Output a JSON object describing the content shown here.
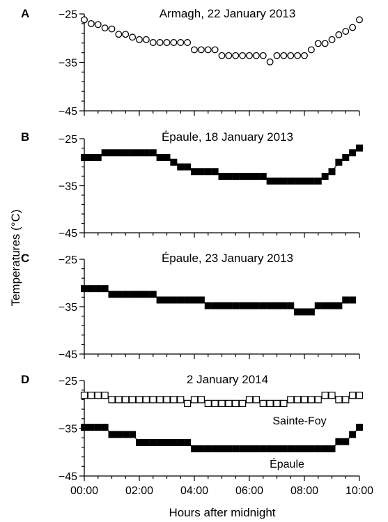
{
  "figure": {
    "ylabel": "Temperatures (°C)",
    "xlabel": "Hours after midnight"
  },
  "chart_data": [
    {
      "type": "scatter",
      "panel": "A",
      "title": "Armagh, 22 January 2013",
      "ylim": [
        -45,
        -25
      ],
      "yticks": [
        -25,
        -35,
        -45
      ],
      "xlim": [
        0,
        10
      ],
      "xticks": [
        "00:00",
        "02:00",
        "04:00",
        "06:00",
        "08:00",
        "10:00"
      ],
      "marker": "open-circle",
      "series": [
        {
          "x": [
            0.0,
            0.25,
            0.5,
            0.75,
            1.0,
            1.25,
            1.5,
            1.75,
            2.0,
            2.25,
            2.5,
            2.75,
            3.0,
            3.25,
            3.5,
            3.75,
            4.0,
            4.25,
            4.5,
            4.75,
            5.0,
            5.25,
            5.5,
            5.75,
            6.0,
            6.25,
            6.5,
            6.75,
            7.0,
            7.25,
            7.5,
            7.75,
            8.0,
            8.25,
            8.5,
            8.75,
            9.0,
            9.25,
            9.5,
            9.75,
            10.0
          ],
          "y": [
            -26.2,
            -27.0,
            -27.2,
            -27.9,
            -28.1,
            -29.2,
            -29.2,
            -29.8,
            -30.3,
            -30.3,
            -30.9,
            -30.9,
            -30.9,
            -30.9,
            -30.9,
            -30.9,
            -32.4,
            -32.4,
            -32.4,
            -32.4,
            -33.6,
            -33.6,
            -33.6,
            -33.6,
            -33.6,
            -33.6,
            -33.6,
            -34.9,
            -33.6,
            -33.6,
            -33.6,
            -33.6,
            -33.6,
            -32.4,
            -31.1,
            -31.1,
            -30.3,
            -29.3,
            -28.6,
            -27.8,
            -26.2
          ]
        }
      ]
    },
    {
      "type": "line",
      "panel": "B",
      "title": "Épaule, 18 January 2013",
      "ylim": [
        -45,
        -25
      ],
      "yticks": [
        -25,
        -35,
        -45
      ],
      "xlim": [
        0,
        10
      ],
      "xticks": [
        "00:00",
        "02:00",
        "04:00",
        "06:00",
        "08:00",
        "10:00"
      ],
      "marker": "filled-square",
      "series": [
        {
          "x": [
            0.0,
            0.25,
            0.5,
            0.75,
            1.0,
            1.25,
            1.5,
            1.75,
            2.0,
            2.25,
            2.5,
            2.75,
            3.0,
            3.25,
            3.5,
            3.75,
            4.0,
            4.25,
            4.5,
            4.75,
            5.0,
            5.25,
            5.5,
            5.75,
            6.0,
            6.25,
            6.5,
            6.75,
            7.0,
            7.25,
            7.5,
            7.75,
            8.0,
            8.25,
            8.5,
            8.75,
            9.0,
            9.25,
            9.5,
            9.75,
            10.0
          ],
          "y": [
            -29.0,
            -29.0,
            -29.0,
            -28.0,
            -28.0,
            -28.0,
            -28.0,
            -28.0,
            -28.0,
            -28.0,
            -28.0,
            -29.0,
            -29.0,
            -30.0,
            -31.0,
            -31.0,
            -32.0,
            -32.0,
            -32.0,
            -32.0,
            -33.0,
            -33.0,
            -33.0,
            -33.0,
            -33.0,
            -33.0,
            -33.0,
            -34.0,
            -34.0,
            -34.0,
            -34.0,
            -34.0,
            -34.0,
            -34.0,
            -34.0,
            -33.0,
            -32.0,
            -30.0,
            -29.0,
            -28.0,
            -27.0
          ]
        }
      ]
    },
    {
      "type": "line",
      "panel": "C",
      "title": "Épaule, 23 January 2013",
      "ylim": [
        -45,
        -25
      ],
      "yticks": [
        -25,
        -35,
        -45
      ],
      "xlim": [
        0,
        10
      ],
      "xticks": [
        "00:00",
        "02:00",
        "04:00",
        "06:00",
        "08:00",
        "10:00"
      ],
      "marker": "filled-square",
      "series": [
        {
          "x": [
            0.0,
            0.25,
            0.5,
            0.75,
            1.0,
            1.25,
            1.5,
            1.75,
            2.0,
            2.25,
            2.5,
            2.75,
            3.0,
            3.25,
            3.5,
            3.75,
            4.0,
            4.25,
            4.5,
            4.75,
            5.0,
            5.25,
            5.5,
            5.75,
            6.0,
            6.25,
            6.5,
            6.75,
            7.0,
            7.25,
            7.5,
            7.75,
            8.0,
            8.25,
            8.5,
            8.75,
            9.0,
            9.25,
            9.5,
            9.75
          ],
          "y": [
            -31.2,
            -31.2,
            -31.2,
            -31.2,
            -32.4,
            -32.4,
            -32.4,
            -32.4,
            -32.4,
            -32.4,
            -32.4,
            -33.6,
            -33.6,
            -33.6,
            -33.6,
            -33.6,
            -33.6,
            -33.6,
            -34.8,
            -34.8,
            -34.8,
            -34.8,
            -34.8,
            -34.8,
            -34.8,
            -34.8,
            -34.8,
            -34.8,
            -34.8,
            -34.8,
            -34.8,
            -36.1,
            -36.1,
            -36.1,
            -34.8,
            -34.8,
            -34.8,
            -34.8,
            -33.6,
            -33.6
          ]
        }
      ]
    },
    {
      "type": "line",
      "panel": "D",
      "title": "2 January 2014",
      "ylim": [
        -45,
        -25
      ],
      "yticks": [
        -25,
        -35,
        -45
      ],
      "xlim": [
        0,
        10
      ],
      "xticks": [
        "00:00",
        "02:00",
        "04:00",
        "06:00",
        "08:00",
        "10:00"
      ],
      "series": [
        {
          "name": "Sainte-Foy",
          "marker": "open-square",
          "x": [
            0.0,
            0.25,
            0.5,
            0.75,
            1.0,
            1.25,
            1.5,
            1.75,
            2.0,
            2.25,
            2.5,
            2.75,
            3.0,
            3.25,
            3.5,
            3.75,
            4.0,
            4.25,
            4.5,
            4.75,
            5.0,
            5.25,
            5.5,
            5.75,
            6.0,
            6.25,
            6.5,
            6.75,
            7.0,
            7.25,
            7.5,
            7.75,
            8.0,
            8.25,
            8.5,
            8.75,
            9.0,
            9.25,
            9.5,
            9.75,
            10.0
          ],
          "y": [
            -28.1,
            -28.1,
            -28.1,
            -28.1,
            -29.0,
            -29.0,
            -29.0,
            -29.0,
            -29.0,
            -29.0,
            -29.0,
            -29.0,
            -29.0,
            -29.0,
            -29.0,
            -29.8,
            -29.0,
            -29.0,
            -29.8,
            -29.8,
            -29.8,
            -29.8,
            -29.8,
            -29.8,
            -29.0,
            -29.0,
            -29.8,
            -29.8,
            -29.8,
            -29.8,
            -29.0,
            -29.0,
            -29.0,
            -29.0,
            -29.0,
            -28.1,
            -28.1,
            -29.0,
            -29.0,
            -28.1,
            -28.1
          ]
        },
        {
          "name": "Épaule",
          "marker": "filled-square",
          "x": [
            0.0,
            0.25,
            0.5,
            0.75,
            1.0,
            1.25,
            1.5,
            1.75,
            2.0,
            2.25,
            2.5,
            2.75,
            3.0,
            3.25,
            3.5,
            3.75,
            4.0,
            4.25,
            4.5,
            4.75,
            5.0,
            5.25,
            5.5,
            5.75,
            6.0,
            6.25,
            6.5,
            6.75,
            7.0,
            7.25,
            7.5,
            7.75,
            8.0,
            8.25,
            8.5,
            8.75,
            9.0,
            9.25,
            9.5,
            9.75,
            10.0
          ],
          "y": [
            -34.8,
            -34.8,
            -34.8,
            -34.8,
            -36.3,
            -36.3,
            -36.3,
            -36.3,
            -38.0,
            -38.0,
            -38.0,
            -38.0,
            -38.0,
            -38.0,
            -38.0,
            -38.0,
            -39.3,
            -39.3,
            -39.3,
            -39.3,
            -39.3,
            -39.3,
            -39.3,
            -39.3,
            -39.3,
            -39.3,
            -39.3,
            -39.3,
            -39.3,
            -39.3,
            -39.3,
            -39.3,
            -39.3,
            -39.3,
            -39.3,
            -39.3,
            -39.3,
            -37.8,
            -37.8,
            -36.3,
            -34.8
          ]
        }
      ]
    }
  ]
}
